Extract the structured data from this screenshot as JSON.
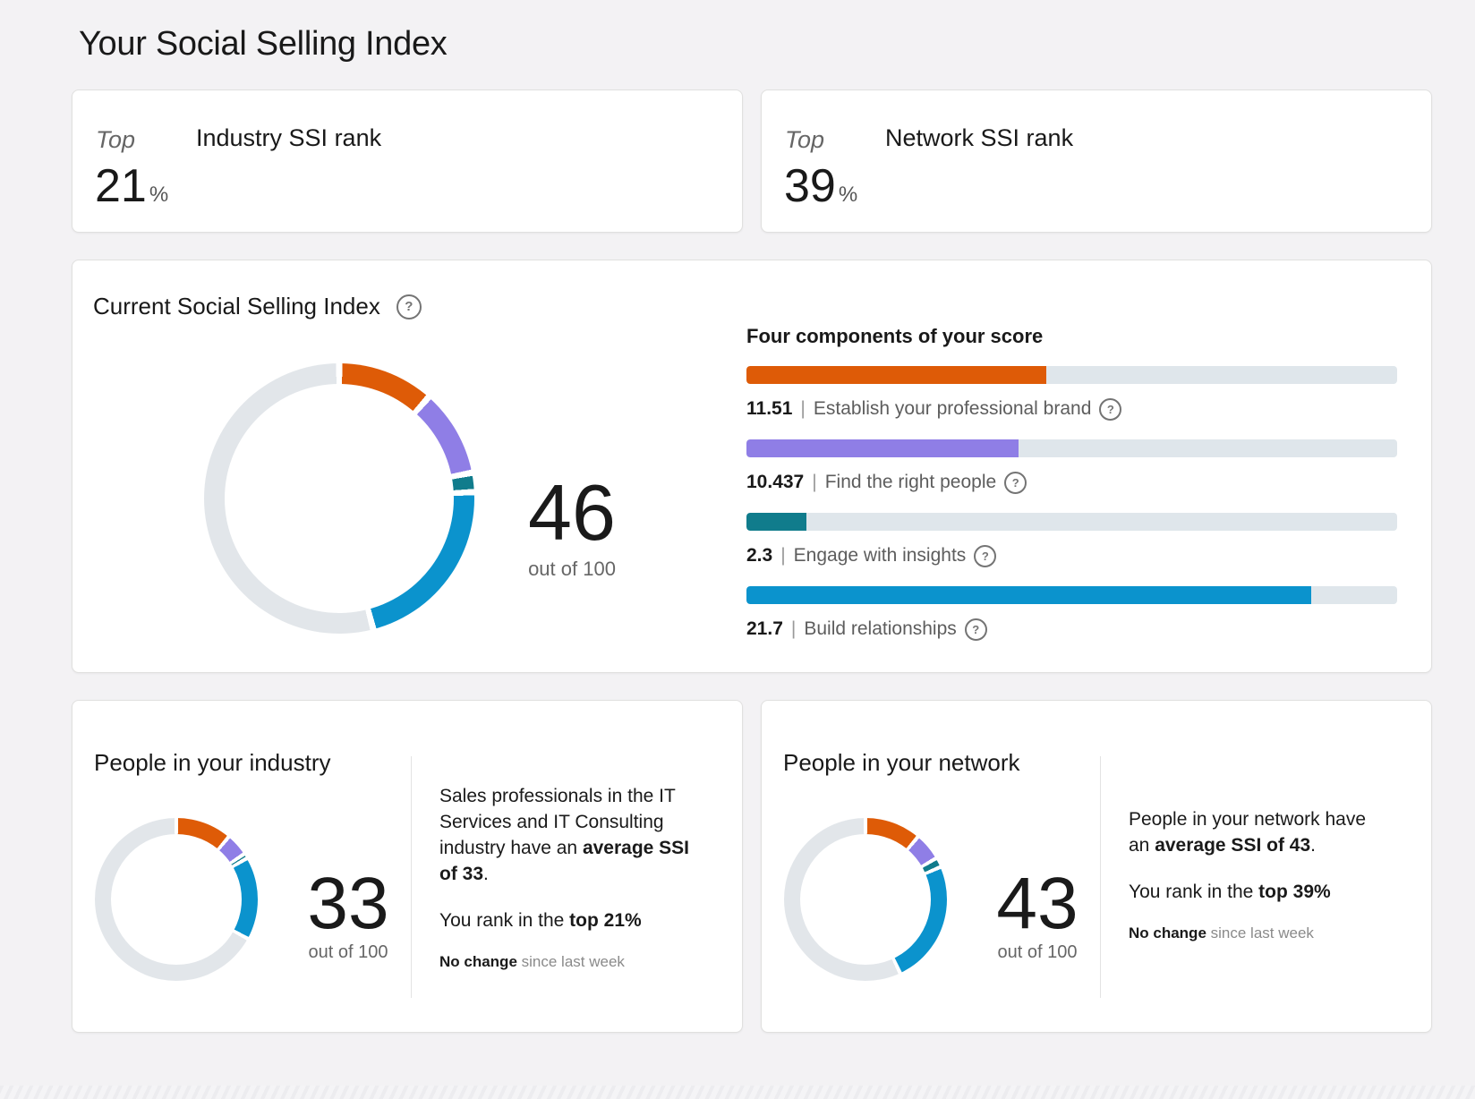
{
  "page": {
    "title": "Your Social Selling Index"
  },
  "icons": {
    "help": "?"
  },
  "colors": {
    "accent_orange": "#DE5B07",
    "accent_purple": "#8F7EE6",
    "accent_teal": "#107C8C",
    "accent_blue": "#0B93CD",
    "bar_track": "#DFE6EB",
    "donut_remainder": "#E2E6EA"
  },
  "rank_cards": [
    {
      "prefix": "Top",
      "value": "21",
      "unit": "%",
      "label": "Industry SSI rank"
    },
    {
      "prefix": "Top",
      "value": "39",
      "unit": "%",
      "label": "Network SSI rank"
    }
  ],
  "current": {
    "heading": "Current Social Selling Index",
    "score": "46",
    "caption": "out of 100",
    "components_heading": "Four components of your score",
    "separator": "|"
  },
  "industry": {
    "heading": "People in your industry",
    "score": "33",
    "caption": "out of 100",
    "para": [
      {
        "t": "Sales professionals in the IT Services and IT Consulting industry have an "
      },
      {
        "t": "average SSI of 33",
        "s": "b"
      },
      {
        "t": "."
      }
    ],
    "rank_line": [
      {
        "t": "You rank in the "
      },
      {
        "t": "top 21%",
        "s": "b"
      }
    ],
    "change_line": [
      {
        "t": "No change",
        "s": "b"
      },
      {
        "t": " since last week",
        "s": "g"
      }
    ]
  },
  "network": {
    "heading": "People in your network",
    "score": "43",
    "caption": "out of 100",
    "para": [
      {
        "t": "People in your network have an "
      },
      {
        "t": "average SSI of 43",
        "s": "b"
      },
      {
        "t": "."
      }
    ],
    "rank_line": [
      {
        "t": "You rank in the "
      },
      {
        "t": "top 39%",
        "s": "b"
      }
    ],
    "change_line": [
      {
        "t": "No change",
        "s": "b"
      },
      {
        "t": " since last week",
        "s": "g"
      }
    ]
  },
  "chart_data": [
    {
      "type": "pie",
      "title": "Current Social Selling Index",
      "center_label": "46 out of 100",
      "total": 100,
      "segments": [
        {
          "name": "Establish your professional brand",
          "value": 11.51,
          "color": "#DE5B07"
        },
        {
          "name": "Find the right people",
          "value": 10.437,
          "color": "#8F7EE6"
        },
        {
          "name": "Engage with insights",
          "value": 2.3,
          "color": "#107C8C"
        },
        {
          "name": "Build relationships",
          "value": 21.7,
          "color": "#0B93CD"
        },
        {
          "name": "remaining",
          "value": 54.053,
          "color": "#E2E6EA"
        }
      ]
    },
    {
      "type": "bar",
      "title": "Four components of your score",
      "max_per_bar": 25,
      "categories": [
        "Establish your professional brand",
        "Find the right people",
        "Engage with insights",
        "Build relationships"
      ],
      "values": [
        11.51,
        10.437,
        2.3,
        21.7
      ],
      "value_labels": [
        "11.51",
        "10.437",
        "2.3",
        "21.7"
      ],
      "colors": [
        "#DE5B07",
        "#8F7EE6",
        "#107C8C",
        "#0B93CD"
      ],
      "track_color": "#DFE6EB"
    },
    {
      "type": "pie",
      "title": "People in your industry",
      "center_label": "33 out of 100",
      "total": 100,
      "segments": [
        {
          "name": "Establish your professional brand",
          "value": 11.1,
          "color": "#DE5B07"
        },
        {
          "name": "Find the right people",
          "value": 4.5,
          "color": "#8F7EE6"
        },
        {
          "name": "Engage with insights",
          "value": 1.0,
          "color": "#107C8C"
        },
        {
          "name": "Build relationships",
          "value": 16.4,
          "color": "#0B93CD"
        },
        {
          "name": "remaining",
          "value": 67.0,
          "color": "#E2E6EA"
        }
      ]
    },
    {
      "type": "pie",
      "title": "People in your network",
      "center_label": "43 out of 100",
      "total": 100,
      "segments": [
        {
          "name": "Establish your professional brand",
          "value": 11.1,
          "color": "#DE5B07"
        },
        {
          "name": "Find the right people",
          "value": 5.5,
          "color": "#8F7EE6"
        },
        {
          "name": "Engage with insights",
          "value": 1.9,
          "color": "#107C8C"
        },
        {
          "name": "Build relationships",
          "value": 24.5,
          "color": "#0B93CD"
        },
        {
          "name": "remaining",
          "value": 57.0,
          "color": "#E2E6EA"
        }
      ]
    }
  ]
}
